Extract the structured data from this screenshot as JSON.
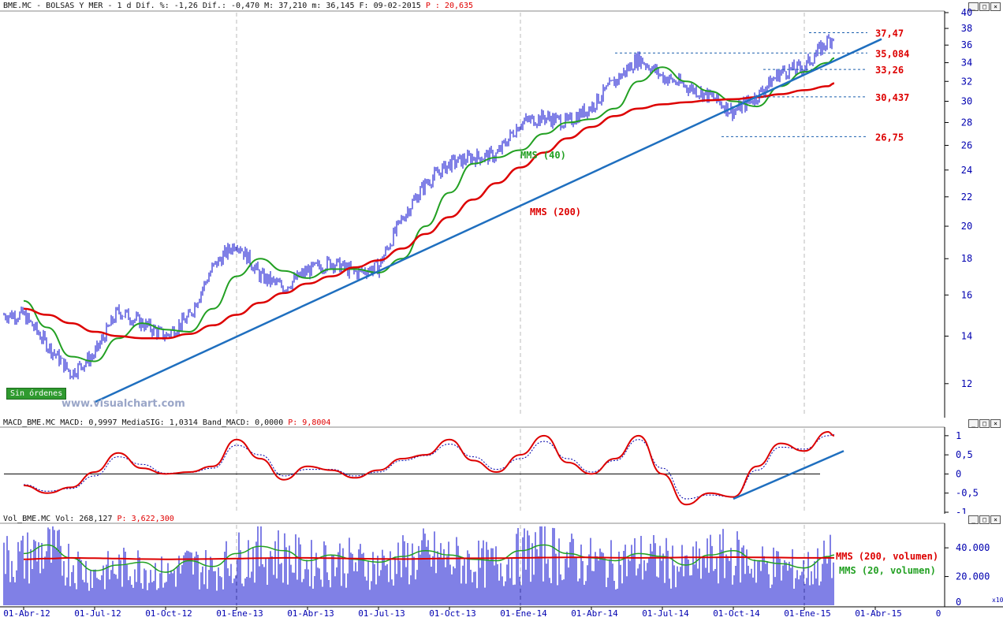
{
  "price_header": {
    "text": "BME.MC - BOLSAS Y MER -  1 d Dif. %: -1,26 Dif.: -0,470 M: 37,210 m: 36,145 F: 09-02-2015",
    "p_value": "P : 20,635"
  },
  "macd_header": {
    "text": "MACD_BME.MC MACD: 0,9997 MediaSIG: 1,0314 Band_MACD: 0,0000",
    "p_value": "P: 9,8004"
  },
  "vol_header": {
    "text": "Vol_BME.MC Vol: 268,127",
    "p_value": "P: 3,622,300"
  },
  "watermark": "www.visualchart.com",
  "badge": "Sin órdenes",
  "window_buttons": [
    "_",
    "□",
    "×"
  ],
  "x_axis_labels": [
    "01-Abr-12",
    "01-Jul-12",
    "01-Oct-12",
    "01-Ene-13",
    "01-Abr-13",
    "01-Jul-13",
    "01-Oct-13",
    "01-Ene-14",
    "01-Abr-14",
    "01-Jul-14",
    "01-Oct-14",
    "01-Ene-15",
    "01-Abr-15"
  ],
  "x_axis_corner": "0",
  "vol_corner": "x10",
  "colors": {
    "price": "#0000cc",
    "mms40": "#22a022",
    "mms200": "#dd0000",
    "trend": "#1f6fbf",
    "level": "#1a5fae",
    "level_label": "#dd0000",
    "axis": "#0000b0"
  },
  "chart_data": [
    {
      "type": "line",
      "panel": "price",
      "title": "BME.MC - BOLSAS Y MER",
      "y_ticks": [
        "12",
        "14",
        "16",
        "18",
        "20",
        "22",
        "24",
        "26",
        "28",
        "30",
        "32",
        "34",
        "36",
        "38",
        "40"
      ],
      "ylim": [
        10.8,
        40
      ],
      "y_scale": "log",
      "x": [
        "01-Abr-12",
        "01-May-12",
        "01-Jun-12",
        "01-Jul-12",
        "01-Ago-12",
        "01-Sep-12",
        "01-Oct-12",
        "01-Nov-12",
        "01-Dic-12",
        "01-Ene-13",
        "01-Feb-13",
        "01-Mar-13",
        "01-Abr-13",
        "01-May-13",
        "01-Jun-13",
        "01-Jul-13",
        "01-Ago-13",
        "01-Sep-13",
        "01-Oct-13",
        "01-Nov-13",
        "01-Dic-13",
        "01-Ene-14",
        "01-Feb-14",
        "01-Mar-14",
        "01-Abr-14",
        "01-May-14",
        "01-Jun-14",
        "01-Jul-14",
        "01-Ago-14",
        "01-Sep-14",
        "01-Oct-14",
        "01-Nov-14",
        "01-Dic-14",
        "01-Ene-15",
        "01-Feb-15",
        "09-Feb-15"
      ],
      "series": [
        {
          "name": "",
          "values": [
            15.0,
            13.6,
            12.4,
            13.2,
            15.2,
            14.6,
            14.0,
            14.9,
            17.5,
            19.0,
            17.0,
            16.4,
            17.3,
            17.8,
            17.2,
            17.5,
            20.5,
            23.0,
            24.5,
            25.0,
            25.2,
            28.0,
            28.5,
            28.0,
            29.5,
            32.0,
            34.5,
            32.5,
            31.5,
            30.5,
            29.0,
            30.5,
            33.0,
            33.5,
            36.5,
            37.2
          ]
        },
        {
          "name": "MMS (40)",
          "values": [
            15.7,
            14.4,
            13.1,
            12.9,
            13.9,
            14.6,
            14.3,
            14.2,
            15.3,
            17.0,
            18.0,
            17.3,
            16.9,
            17.4,
            17.4,
            17.2,
            18.0,
            20.0,
            22.3,
            24.5,
            25.0,
            25.6,
            27.0,
            28.0,
            28.3,
            29.3,
            32.0,
            33.5,
            32.0,
            31.0,
            30.0,
            29.5,
            31.5,
            33.0,
            34.0,
            34.5
          ]
        },
        {
          "name": "MMS (200)",
          "values": [
            15.3,
            15.0,
            14.6,
            14.2,
            14.0,
            13.9,
            13.9,
            14.1,
            14.5,
            15.0,
            15.6,
            16.1,
            16.6,
            17.0,
            17.5,
            17.9,
            18.6,
            19.5,
            20.6,
            21.8,
            23.0,
            24.2,
            25.4,
            26.6,
            27.6,
            28.6,
            29.3,
            29.7,
            29.9,
            30.1,
            30.2,
            30.4,
            30.7,
            31.1,
            31.5,
            31.8
          ]
        }
      ],
      "trendline": {
        "name": "",
        "from": [
          "01-Jul-12",
          11.3
        ],
        "to": [
          "09-Feb-15",
          34.2
        ]
      },
      "levels": [
        "37,47",
        "35,084",
        "33,26",
        "30,437",
        "26,75"
      ]
    },
    {
      "type": "line",
      "panel": "macd",
      "title": "MACD_BME.MC",
      "y_ticks": [
        "1",
        "0,5",
        "0",
        "-0,5",
        "-1"
      ],
      "ylim": [
        -1,
        1.1
      ],
      "x": [
        "01-Abr-12",
        "01-May-12",
        "01-Jun-12",
        "01-Jul-12",
        "01-Ago-12",
        "01-Sep-12",
        "01-Oct-12",
        "01-Nov-12",
        "01-Dic-12",
        "01-Ene-13",
        "01-Feb-13",
        "01-Mar-13",
        "01-Abr-13",
        "01-May-13",
        "01-Jun-13",
        "01-Jul-13",
        "01-Ago-13",
        "01-Sep-13",
        "01-Oct-13",
        "01-Nov-13",
        "01-Dic-13",
        "01-Ene-14",
        "01-Feb-14",
        "01-Mar-14",
        "01-Abr-14",
        "01-May-14",
        "01-Jun-14",
        "01-Jul-14",
        "01-Ago-14",
        "01-Sep-14",
        "01-Oct-14",
        "01-Nov-14",
        "01-Dic-14",
        "01-Ene-15",
        "01-Feb-15",
        "09-Feb-15"
      ],
      "series": [
        {
          "name": "MACD",
          "values": [
            -0.3,
            -0.5,
            -0.35,
            0.05,
            0.55,
            0.15,
            0.0,
            0.05,
            0.2,
            0.9,
            0.4,
            -0.15,
            0.2,
            0.1,
            -0.1,
            0.1,
            0.4,
            0.5,
            0.9,
            0.35,
            0.05,
            0.5,
            1.0,
            0.3,
            0.0,
            0.4,
            1.0,
            0.0,
            -0.8,
            -0.5,
            -0.6,
            0.2,
            0.8,
            0.6,
            1.1,
            1.0
          ]
        },
        {
          "name": "MediaSIG",
          "values": [
            -0.28,
            -0.45,
            -0.38,
            -0.05,
            0.45,
            0.25,
            0.02,
            0.04,
            0.15,
            0.75,
            0.5,
            -0.05,
            0.12,
            0.12,
            -0.05,
            0.05,
            0.35,
            0.48,
            0.78,
            0.45,
            0.12,
            0.4,
            0.85,
            0.4,
            0.05,
            0.35,
            0.9,
            0.15,
            -0.65,
            -0.55,
            -0.6,
            0.1,
            0.7,
            0.65,
            1.0,
            1.03
          ]
        }
      ],
      "trendline": {
        "name": "",
        "from": [
          "01-Oct-14",
          -0.65
        ],
        "to": [
          "09-Feb-15",
          0.6
        ]
      }
    },
    {
      "type": "bar",
      "panel": "volume",
      "title": "Vol_BME.MC",
      "y_ticks": [
        "20.000",
        "40.000"
      ],
      "ylim": [
        0,
        56000
      ],
      "x": [
        "01-Abr-12",
        "01-May-12",
        "01-Jun-12",
        "01-Jul-12",
        "01-Ago-12",
        "01-Sep-12",
        "01-Oct-12",
        "01-Nov-12",
        "01-Dic-12",
        "01-Ene-13",
        "01-Feb-13",
        "01-Mar-13",
        "01-Abr-13",
        "01-May-13",
        "01-Jun-13",
        "01-Jul-13",
        "01-Ago-13",
        "01-Sep-13",
        "01-Oct-13",
        "01-Nov-13",
        "01-Dic-13",
        "01-Ene-14",
        "01-Feb-14",
        "01-Mar-14",
        "01-Abr-14",
        "01-May-14",
        "01-Jun-14",
        "01-Jul-14",
        "01-Ago-14",
        "01-Sep-14",
        "01-Oct-14",
        "01-Nov-14",
        "01-Dic-14",
        "01-Ene-15",
        "01-Feb-15",
        "09-Feb-15"
      ],
      "series": [
        {
          "name": "MMS (20, volumen)",
          "values": [
            36000,
            42000,
            33000,
            24000,
            28000,
            30000,
            23000,
            31000,
            27000,
            36000,
            41000,
            38000,
            31000,
            35000,
            32000,
            30000,
            34000,
            38000,
            35000,
            32000,
            31000,
            38000,
            42000,
            36000,
            33000,
            31000,
            36000,
            34000,
            28000,
            35000,
            38000,
            31000,
            29000,
            26000,
            34000,
            35000
          ]
        },
        {
          "name": "MMS (200, volumen)",
          "values": [
            32000,
            32500,
            33000,
            32800,
            32500,
            32200,
            32000,
            32100,
            32300,
            32500,
            32800,
            33000,
            33000,
            32800,
            32500,
            32300,
            32200,
            32400,
            32600,
            32700,
            32800,
            33000,
            33200,
            33400,
            33300,
            33100,
            33000,
            33100,
            33300,
            33400,
            33500,
            33400,
            33200,
            33000,
            33000,
            33000
          ]
        }
      ],
      "legend": [
        "MMS (200, volumen)",
        "MMS (20, volumen)"
      ]
    }
  ]
}
